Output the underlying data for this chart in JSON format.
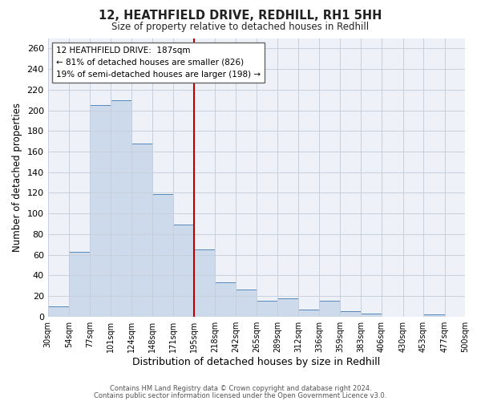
{
  "title": "12, HEATHFIELD DRIVE, REDHILL, RH1 5HH",
  "subtitle": "Size of property relative to detached houses in Redhill",
  "xlabel": "Distribution of detached houses by size in Redhill",
  "ylabel": "Number of detached properties",
  "bar_color": "#cddaeb",
  "bar_edge_color": "#5588bb",
  "background_color": "#ffffff",
  "grid_color": "#c8d0dc",
  "vline_x": 195,
  "vline_color": "#bb0000",
  "bin_edges": [
    30,
    54,
    77,
    101,
    124,
    148,
    171,
    195,
    218,
    242,
    265,
    289,
    312,
    336,
    359,
    383,
    406,
    430,
    453,
    477,
    500
  ],
  "bar_heights": [
    10,
    63,
    205,
    210,
    168,
    119,
    89,
    65,
    33,
    26,
    15,
    18,
    7,
    15,
    5,
    3,
    0,
    0,
    2,
    0
  ],
  "ylim": [
    0,
    270
  ],
  "yticks": [
    0,
    20,
    40,
    60,
    80,
    100,
    120,
    140,
    160,
    180,
    200,
    220,
    240,
    260
  ],
  "annotation_title": "12 HEATHFIELD DRIVE:  187sqm",
  "annotation_line1": "← 81% of detached houses are smaller (826)",
  "annotation_line2": "19% of semi-detached houses are larger (198) →",
  "annotation_box_color": "#ffffff",
  "annotation_box_edge": "#666666",
  "footer_line1": "Contains HM Land Registry data © Crown copyright and database right 2024.",
  "footer_line2": "Contains public sector information licensed under the Open Government Licence v3.0."
}
